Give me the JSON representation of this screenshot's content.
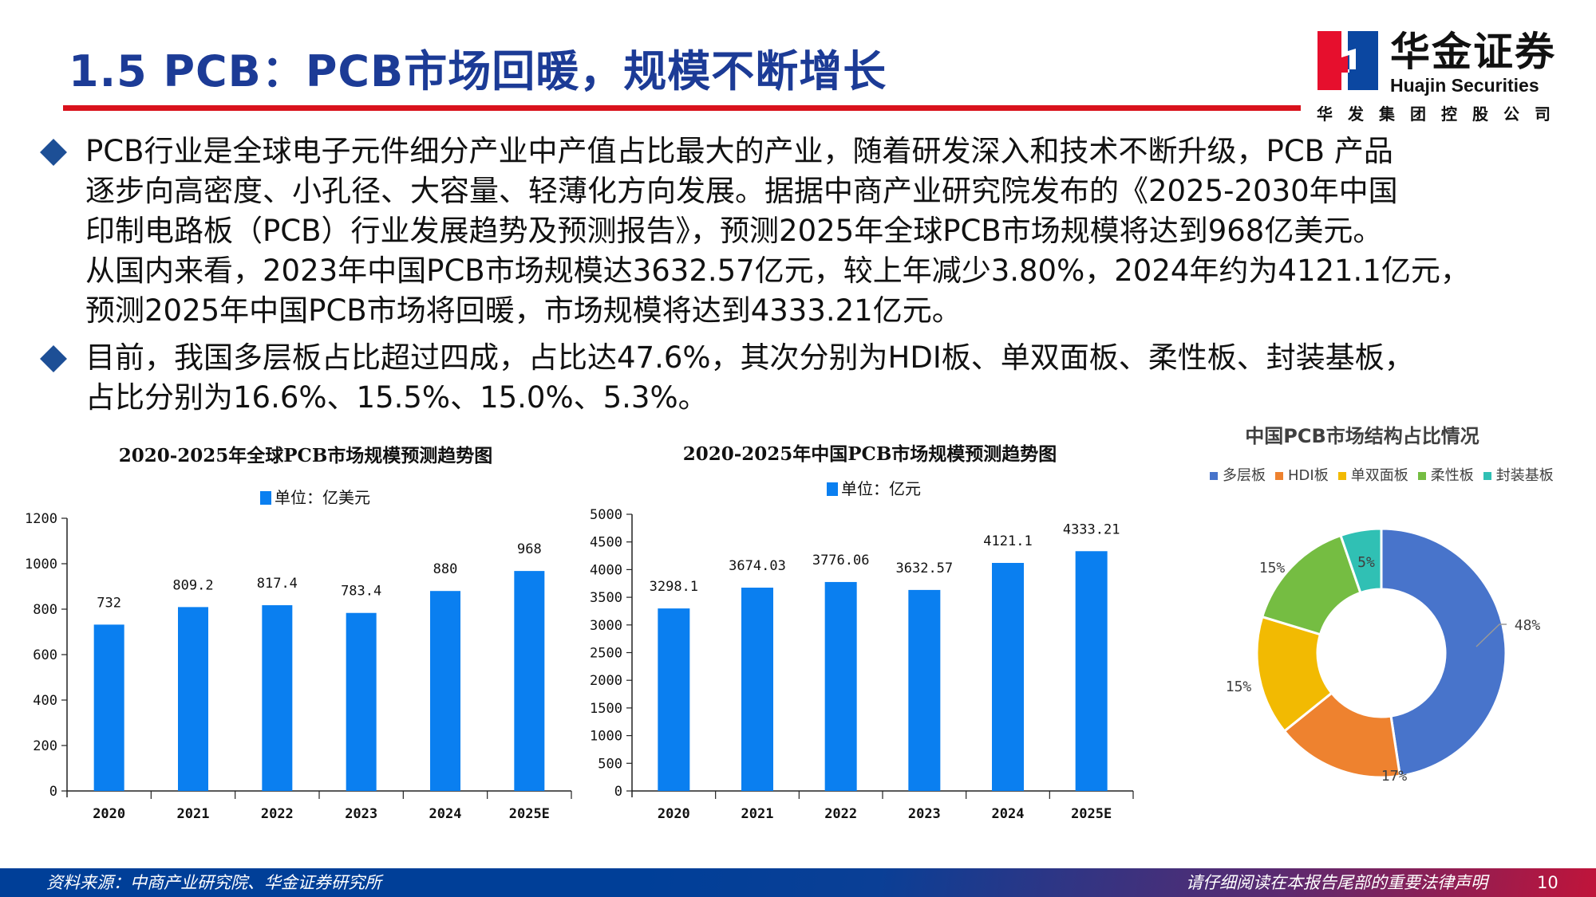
{
  "header": {
    "title": "1.5 PCB：PCB市场回暖，规模不断增长"
  },
  "logo": {
    "cn": "华金证券",
    "en": "Huajin Securities",
    "sub": "华发集团控股公司"
  },
  "bullets": [
    {
      "lines": [
        "PCB行业是全球电子元件细分产业中产值占比最大的产业，随着研发深入和技术不断升级，PCB 产品",
        "逐步向高密度、小孔径、大容量、轻薄化方向发展。据据中商产业研究院发布的《2025-2030年中国",
        "印制电路板（PCB）行业发展趋势及预测报告》，预测2025年全球PCB市场规模将达到968亿美元。",
        "从国内来看，2023年中国PCB市场规模达3632.57亿元，较上年减少3.80%，2024年约为4121.1亿元，",
        "预测2025年中国PCB市场将回暖，市场规模将达到4333.21亿元。"
      ]
    },
    {
      "lines": [
        "目前，我国多层板占比超过四成，占比达47.6%，其次分别为HDI板、单双面板、柔性板、封装基板，",
        "占比分别为16.6%、15.5%、15.0%、5.3%。"
      ]
    }
  ],
  "chart_data": [
    {
      "type": "bar",
      "title": "2020-2025年全球PCB市场规模预测趋势图",
      "legend": "单位：亿美元",
      "categories": [
        "2020",
        "2021",
        "2022",
        "2023",
        "2024",
        "2025E"
      ],
      "values": [
        732,
        809.2,
        817.4,
        783.4,
        880,
        968
      ],
      "labels": [
        "732",
        "809.2",
        "817.4",
        "783.4",
        "880",
        "968"
      ],
      "ylim": [
        0,
        1200
      ],
      "yticks": [
        "0",
        "200",
        "400",
        "600",
        "800",
        "1000",
        "1200"
      ],
      "color": "#0a7ff0"
    },
    {
      "type": "bar",
      "title": "2020-2025年中国PCB市场规模预测趋势图",
      "legend": "单位：亿元",
      "categories": [
        "2020",
        "2021",
        "2022",
        "2023",
        "2024",
        "2025E"
      ],
      "values": [
        3298.1,
        3674.03,
        3776.06,
        3632.57,
        4121.1,
        4333.21
      ],
      "labels": [
        "3298.1",
        "3674.03",
        "3776.06",
        "3632.57",
        "4121.1",
        "4333.21"
      ],
      "ylim": [
        0,
        5000
      ],
      "yticks": [
        "0",
        "500",
        "1000",
        "1500",
        "2000",
        "2500",
        "3000",
        "3500",
        "4000",
        "4500",
        "5000"
      ],
      "color": "#0a7ff0"
    },
    {
      "type": "pie",
      "title": "中国PCB市场结构占比情况",
      "categories": [
        "多层板",
        "HDI板",
        "单双面板",
        "柔性板",
        "封装基板"
      ],
      "values": [
        47.6,
        16.6,
        15.5,
        15.0,
        5.3
      ],
      "labels": [
        "48%",
        "17%",
        "15%",
        "15%",
        "5%"
      ],
      "colors": [
        "#4874cb",
        "#ee822f",
        "#f2ba02",
        "#75bd42",
        "#30c0b4"
      ]
    }
  ],
  "footer": {
    "source": "资料来源：中商产业研究院、华金证券研究所",
    "disclaimer": "请仔细阅读在本报告尾部的重要法律声明",
    "page": "10"
  }
}
